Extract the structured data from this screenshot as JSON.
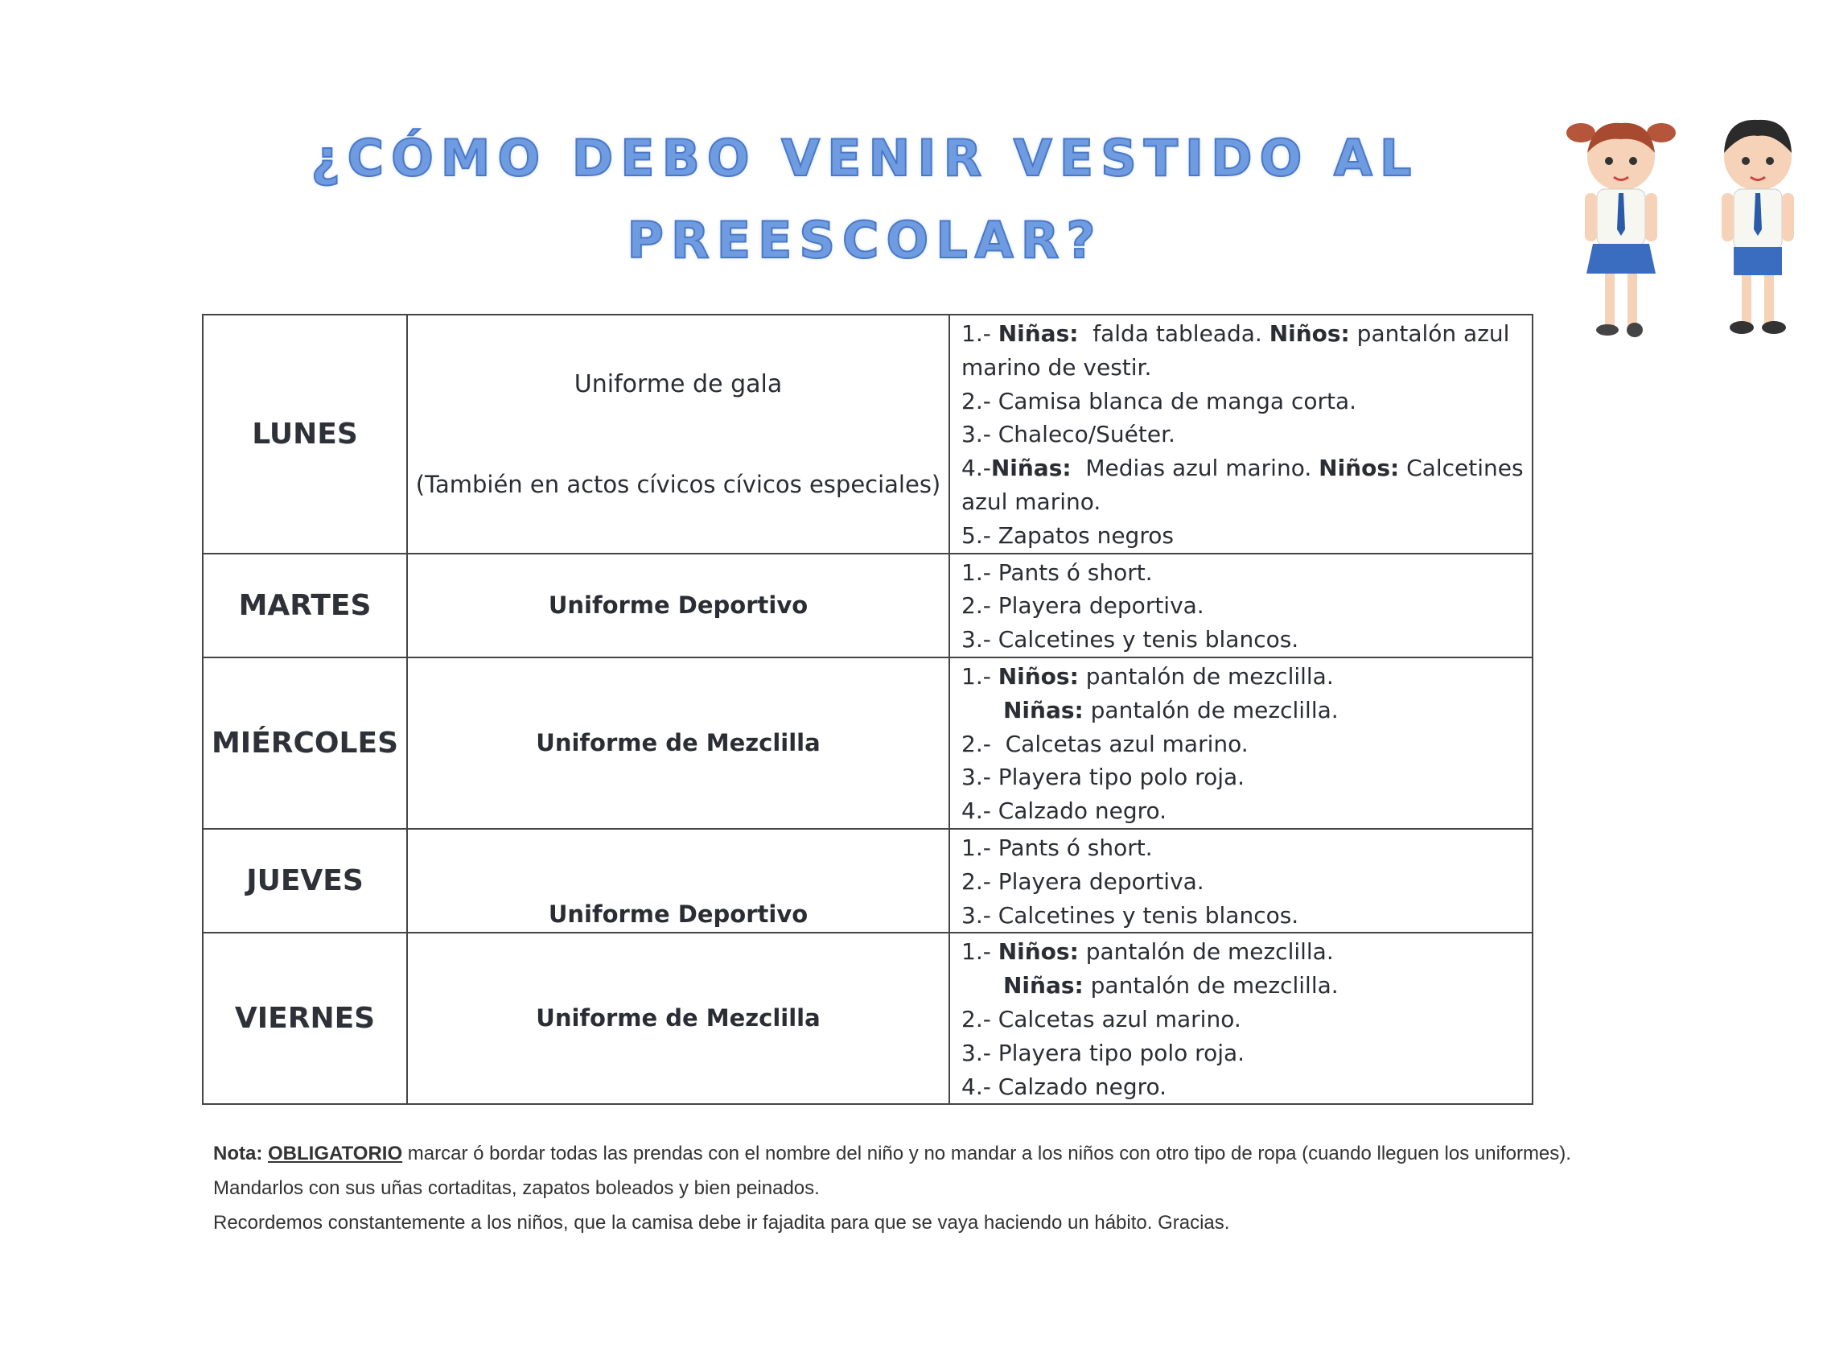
{
  "title": {
    "line1": "¿CÓMO DEBO VENIR VESTIDO AL",
    "line2": "PREESCOLAR?"
  },
  "rows": [
    {
      "day": "LUNES",
      "uniform": "Uniforme de gala",
      "uniform_note": "(También en actos cívicos cívicos especiales)",
      "items": [
        {
          "n": "1.- ",
          "b1": "Niñas:",
          "t1": "  falda tableada. ",
          "b2": "Niños:",
          "t2": " pantalón azul"
        },
        {
          "t1": "marino de vestir."
        },
        {
          "n": "2.- ",
          "t1": "Camisa blanca de manga corta."
        },
        {
          "n": "3.- ",
          "t1": "Chaleco/Suéter."
        },
        {
          "n": "4.-",
          "b1": "Niñas:",
          "t1": "  Medias azul marino. ",
          "b2": "Niños:",
          "t2": " Calcetines"
        },
        {
          "t1": "azul marino."
        },
        {
          "n": "5.- ",
          "t1": "Zapatos negros"
        }
      ]
    },
    {
      "day": "MARTES",
      "uniform": "Uniforme Deportivo",
      "items": [
        {
          "n": "1.- ",
          "t1": "Pants ó short."
        },
        {
          "n": "2.- ",
          "t1": "Playera deportiva."
        },
        {
          "n": "3.- ",
          "t1": "Calcetines y tenis blancos."
        }
      ]
    },
    {
      "day": "MIÉRCOLES",
      "uniform": "Uniforme de Mezclilla",
      "items": [
        {
          "n": "1.- ",
          "b1": "Niños:",
          "t1": " pantalón de mezclilla."
        },
        {
          "b1": "Niñas:",
          "t1": " pantalón de mezclilla."
        },
        {
          "n": "2.-  ",
          "t1": "Calcetas azul marino."
        },
        {
          "n": "3.- ",
          "t1": "Playera tipo polo roja."
        },
        {
          "n": "4.- ",
          "t1": "Calzado negro."
        }
      ]
    },
    {
      "day": "JUEVES",
      "uniform": "Uniforme Deportivo",
      "items": [
        {
          "n": "1.- ",
          "t1": "Pants ó short."
        },
        {
          "n": "2.- ",
          "t1": "Playera deportiva."
        },
        {
          "n": "3.- ",
          "t1": "Calcetines y tenis blancos."
        }
      ]
    },
    {
      "day": "VIERNES",
      "uniform": "Uniforme de Mezclilla",
      "items": [
        {
          "n": "1.- ",
          "b1": "Niños:",
          "t1": " pantalón de mezclilla."
        },
        {
          "b1": "Niñas:",
          "t1": " pantalón de mezclilla."
        },
        {
          "n": "2.- ",
          "t1": "Calcetas azul marino."
        },
        {
          "n": "3.- ",
          "t1": "Playera tipo polo roja."
        },
        {
          "n": "4.- ",
          "t1": "Calzado negro."
        }
      ]
    }
  ],
  "note": {
    "label": "Nota:",
    "emphasis": "OBLIGATORIO",
    "line1": " marcar ó bordar todas las prendas con el nombre del niño y no mandar a los niños con otro tipo de ropa (cuando lleguen los uniformes).",
    "line2": "Mandarlos con sus uñas cortaditas, zapatos boleados  y bien peinados.",
    "line3": "Recordemos constantemente a los niños, que la camisa debe ir fajadita para que se vaya haciendo un hábito.  Gracias."
  },
  "colors": {
    "title": "#6f9be0",
    "text": "#2a2d33"
  },
  "illustration": "girl-and-boy-in-school-uniform"
}
